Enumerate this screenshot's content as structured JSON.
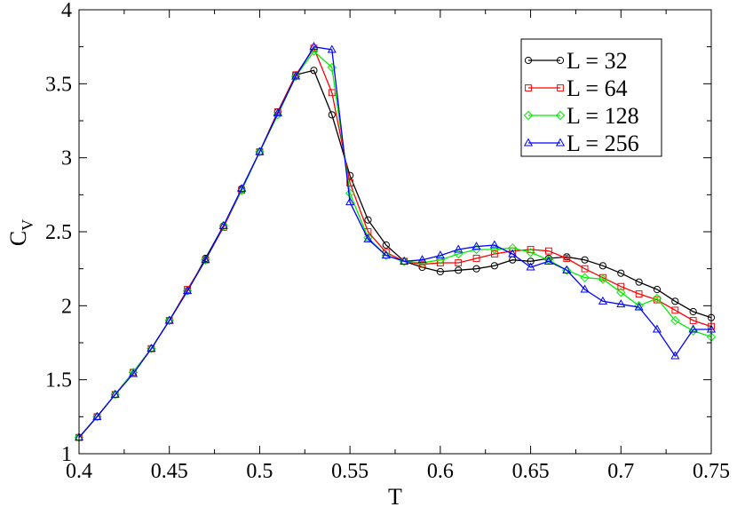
{
  "chart_data": {
    "type": "line",
    "xlabel": "T",
    "ylabel": "C",
    "ylabel_sub": "V",
    "xlim": [
      0.4,
      0.75
    ],
    "ylim": [
      1,
      4
    ],
    "x_ticks": [
      0.4,
      0.45,
      0.5,
      0.55,
      0.6,
      0.65,
      0.7,
      0.75
    ],
    "x_tick_labels": [
      "0.4",
      "0.45",
      "0.5",
      "0.55",
      "0.6",
      "0.65",
      "0.7",
      "0.75"
    ],
    "y_ticks": [
      1,
      1.5,
      2,
      2.5,
      3,
      3.5,
      4
    ],
    "y_tick_labels": [
      "1",
      "1.5",
      "2",
      "2.5",
      "3",
      "3.5",
      "4"
    ],
    "grid": false,
    "legend_position": "top-right",
    "x": [
      0.4,
      0.41,
      0.42,
      0.43,
      0.44,
      0.45,
      0.46,
      0.47,
      0.48,
      0.49,
      0.5,
      0.51,
      0.52,
      0.53,
      0.54,
      0.55,
      0.56,
      0.57,
      0.58,
      0.59,
      0.6,
      0.61,
      0.62,
      0.63,
      0.64,
      0.65,
      0.66,
      0.67,
      0.68,
      0.69,
      0.7,
      0.71,
      0.72,
      0.73,
      0.74,
      0.75
    ],
    "series": [
      {
        "name": "L = 32",
        "color": "#000000",
        "marker": "circle",
        "values": [
          1.11,
          1.25,
          1.4,
          1.55,
          1.71,
          1.9,
          2.1,
          2.32,
          2.54,
          2.79,
          3.04,
          3.31,
          3.56,
          3.59,
          3.29,
          2.88,
          2.58,
          2.41,
          2.3,
          2.26,
          2.23,
          2.24,
          2.25,
          2.27,
          2.31,
          2.3,
          2.32,
          2.33,
          2.31,
          2.27,
          2.22,
          2.16,
          2.11,
          2.03,
          1.96,
          1.92
        ]
      },
      {
        "name": "L = 64",
        "color": "#ff0000",
        "marker": "square",
        "values": [
          1.11,
          1.25,
          1.4,
          1.55,
          1.71,
          1.9,
          2.11,
          2.31,
          2.53,
          2.78,
          3.04,
          3.31,
          3.56,
          3.74,
          3.44,
          2.83,
          2.5,
          2.36,
          2.3,
          2.28,
          2.29,
          2.29,
          2.32,
          2.35,
          2.37,
          2.38,
          2.37,
          2.32,
          2.25,
          2.19,
          2.13,
          2.08,
          2.04,
          1.97,
          1.9,
          1.86
        ]
      },
      {
        "name": "L = 128",
        "color": "#00ee00",
        "marker": "diamond",
        "values": [
          1.11,
          1.25,
          1.4,
          1.55,
          1.71,
          1.9,
          2.1,
          2.31,
          2.54,
          2.78,
          3.04,
          3.29,
          3.55,
          3.72,
          3.61,
          2.76,
          2.46,
          2.34,
          2.3,
          2.29,
          2.31,
          2.35,
          2.38,
          2.38,
          2.39,
          2.36,
          2.31,
          2.24,
          2.19,
          2.18,
          2.09,
          2.0,
          2.05,
          1.9,
          1.83,
          1.79
        ]
      },
      {
        "name": "L = 256",
        "color": "#0000ff",
        "marker": "triangle",
        "values": [
          1.11,
          1.25,
          1.4,
          1.54,
          1.71,
          1.9,
          2.1,
          2.31,
          2.54,
          2.79,
          3.04,
          3.3,
          3.55,
          3.75,
          3.73,
          2.7,
          2.45,
          2.34,
          2.3,
          2.31,
          2.34,
          2.38,
          2.4,
          2.41,
          2.35,
          2.26,
          2.3,
          2.24,
          2.11,
          2.03,
          2.01,
          1.99,
          1.84,
          1.66,
          1.84,
          1.84
        ]
      }
    ]
  }
}
